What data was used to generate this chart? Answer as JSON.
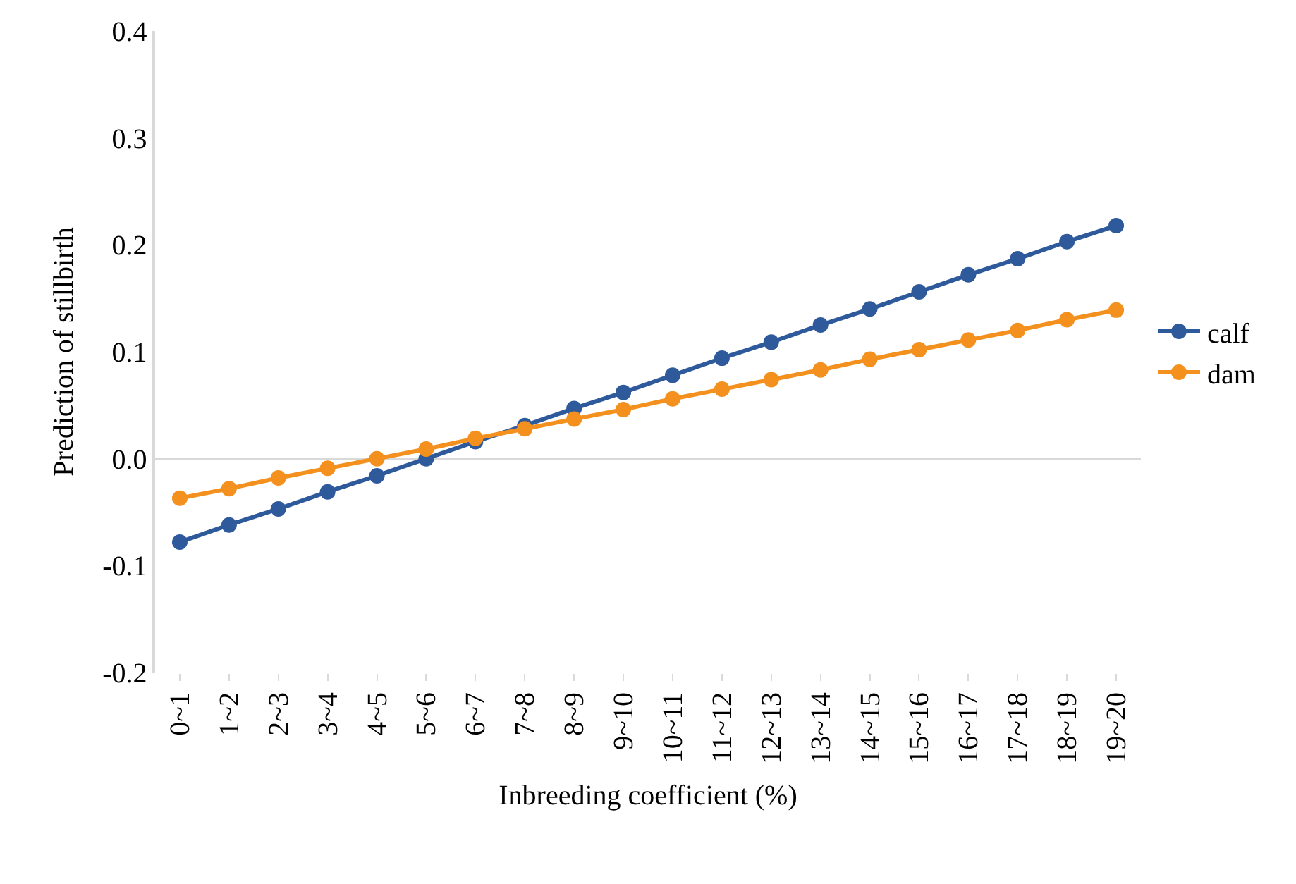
{
  "chart_data": {
    "type": "line",
    "xlabel": "Inbreeding coefficient (%)",
    "ylabel": "Prediction of stillbirth",
    "categories": [
      "0~1",
      "1~2",
      "2~3",
      "3~4",
      "4~5",
      "5~6",
      "6~7",
      "7~8",
      "8~9",
      "9~10",
      "10~11",
      "11~12",
      "12~13",
      "13~14",
      "14~15",
      "15~16",
      "16~17",
      "17~18",
      "18~19",
      "19~20"
    ],
    "series": [
      {
        "name": "calf",
        "color": "#2e5a9c",
        "values": [
          -0.078,
          -0.062,
          -0.047,
          -0.031,
          -0.016,
          0.0,
          0.016,
          0.031,
          0.047,
          0.062,
          0.078,
          0.094,
          0.109,
          0.125,
          0.14,
          0.156,
          0.172,
          0.187,
          0.203,
          0.218
        ]
      },
      {
        "name": "dam",
        "color": "#f4901e",
        "values": [
          -0.037,
          -0.028,
          -0.018,
          -0.009,
          0.0,
          0.009,
          0.019,
          0.028,
          0.037,
          0.046,
          0.056,
          0.065,
          0.074,
          0.083,
          0.093,
          0.102,
          0.111,
          0.12,
          0.13,
          0.139
        ]
      }
    ],
    "ylim": [
      -0.2,
      0.4
    ],
    "yticks": [
      -0.2,
      -0.1,
      {
        "value": 0,
        "label": "0.0"
      },
      0.1,
      0.2,
      0.3,
      0.4
    ],
    "ref_lines": [
      {
        "axis": "y",
        "value": 0,
        "color": "#d9d9d9"
      }
    ],
    "grid": false,
    "legend": "right",
    "marker": "circle",
    "line_style": "solid"
  }
}
